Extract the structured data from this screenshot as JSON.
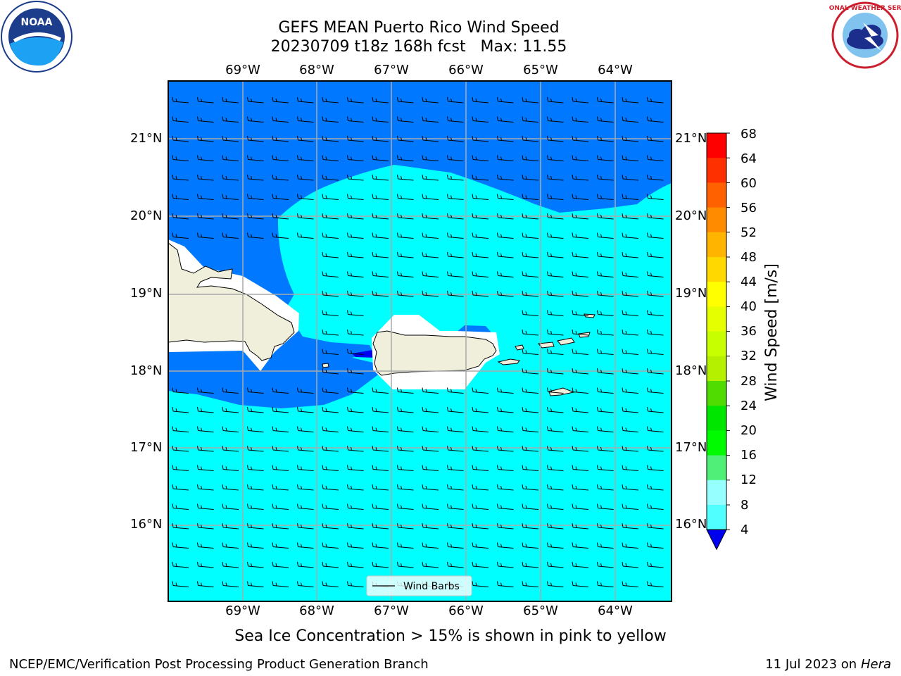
{
  "header": {
    "title_line1": "GEFS MEAN Puerto Rico Wind Speed",
    "title_line2": "20230709 t18z 168h fcst   Max: 11.55"
  },
  "logos": {
    "left_text": "NOAA",
    "right_text": "NATIONAL WEATHER SERVICE"
  },
  "map": {
    "lon_labels": [
      "69°W",
      "68°W",
      "67°W",
      "66°W",
      "65°W",
      "64°W"
    ],
    "lat_labels": [
      "21°N",
      "20°N",
      "19°N",
      "18°N",
      "17°N",
      "16°N"
    ],
    "legend_label": "Wind Barbs"
  },
  "colorbar": {
    "label": "Wind Speed [m/s]",
    "ticks": [
      "68",
      "64",
      "60",
      "56",
      "52",
      "48",
      "44",
      "40",
      "36",
      "32",
      "28",
      "24",
      "20",
      "16",
      "12",
      "8",
      "4"
    ],
    "colors": [
      "#ff0000",
      "#ff3000",
      "#ff6000",
      "#ff8c00",
      "#ffb400",
      "#ffd800",
      "#ffff00",
      "#e6ff00",
      "#c8ff00",
      "#b4f000",
      "#50dc00",
      "#00e600",
      "#00fa00",
      "#50f078",
      "#96ffff",
      "#50ffff",
      "#00ffff",
      "#0078ff",
      "#0000f0"
    ]
  },
  "footer": {
    "note": "Sea Ice Concentration > 15% is shown in pink to yellow",
    "branch": "NCEP/EMC/Verification Post Processing Product Generation Branch",
    "date": "11 Jul 2023 on ",
    "host": "Hera"
  }
}
